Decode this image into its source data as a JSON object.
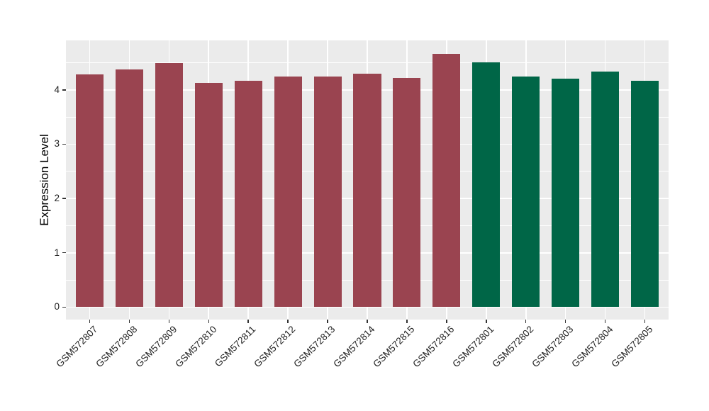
{
  "chart_data": {
    "type": "bar",
    "title": "",
    "xlabel": "",
    "ylabel": "Expression Level",
    "ylim": [
      -0.23,
      4.91
    ],
    "yticks": [
      0,
      1,
      2,
      3,
      4
    ],
    "grid": "on",
    "legend": "none",
    "categories": [
      "GSM572807",
      "GSM572808",
      "GSM572809",
      "GSM572810",
      "GSM572811",
      "GSM572812",
      "GSM572813",
      "GSM572814",
      "GSM572815",
      "GSM572816",
      "GSM572801",
      "GSM572802",
      "GSM572803",
      "GSM572804",
      "GSM572805"
    ],
    "values": [
      4.28,
      4.37,
      4.49,
      4.13,
      4.16,
      4.24,
      4.25,
      4.3,
      4.22,
      4.66,
      4.51,
      4.25,
      4.2,
      4.33,
      4.17
    ],
    "bars": [
      {
        "label": "GSM572807",
        "value": 4.28,
        "color": "#9A4450"
      },
      {
        "label": "GSM572808",
        "value": 4.37,
        "color": "#9A4450"
      },
      {
        "label": "GSM572809",
        "value": 4.49,
        "color": "#9A4450"
      },
      {
        "label": "GSM572810",
        "value": 4.13,
        "color": "#9A4450"
      },
      {
        "label": "GSM572811",
        "value": 4.16,
        "color": "#9A4450"
      },
      {
        "label": "GSM572812",
        "value": 4.24,
        "color": "#9A4450"
      },
      {
        "label": "GSM572813",
        "value": 4.25,
        "color": "#9A4450"
      },
      {
        "label": "GSM572814",
        "value": 4.3,
        "color": "#9A4450"
      },
      {
        "label": "GSM572815",
        "value": 4.22,
        "color": "#9A4450"
      },
      {
        "label": "GSM572816",
        "value": 4.66,
        "color": "#9A4450"
      },
      {
        "label": "GSM572801",
        "value": 4.51,
        "color": "#006647"
      },
      {
        "label": "GSM572802",
        "value": 4.25,
        "color": "#006647"
      },
      {
        "label": "GSM572803",
        "value": 4.2,
        "color": "#006647"
      },
      {
        "label": "GSM572804",
        "value": 4.33,
        "color": "#006647"
      },
      {
        "label": "GSM572805",
        "value": 4.17,
        "color": "#006647"
      }
    ],
    "group_colors": {
      "red_group": "#9A4450",
      "green_group": "#006647"
    },
    "panel_background": "#EBEBEB",
    "figure_background": "#FFFFFF",
    "grid_color": "#FFFFFF",
    "tick_mark_color": "#333333",
    "axis_text_color": "#1F1F1F",
    "axis_title_color": "#000000"
  }
}
